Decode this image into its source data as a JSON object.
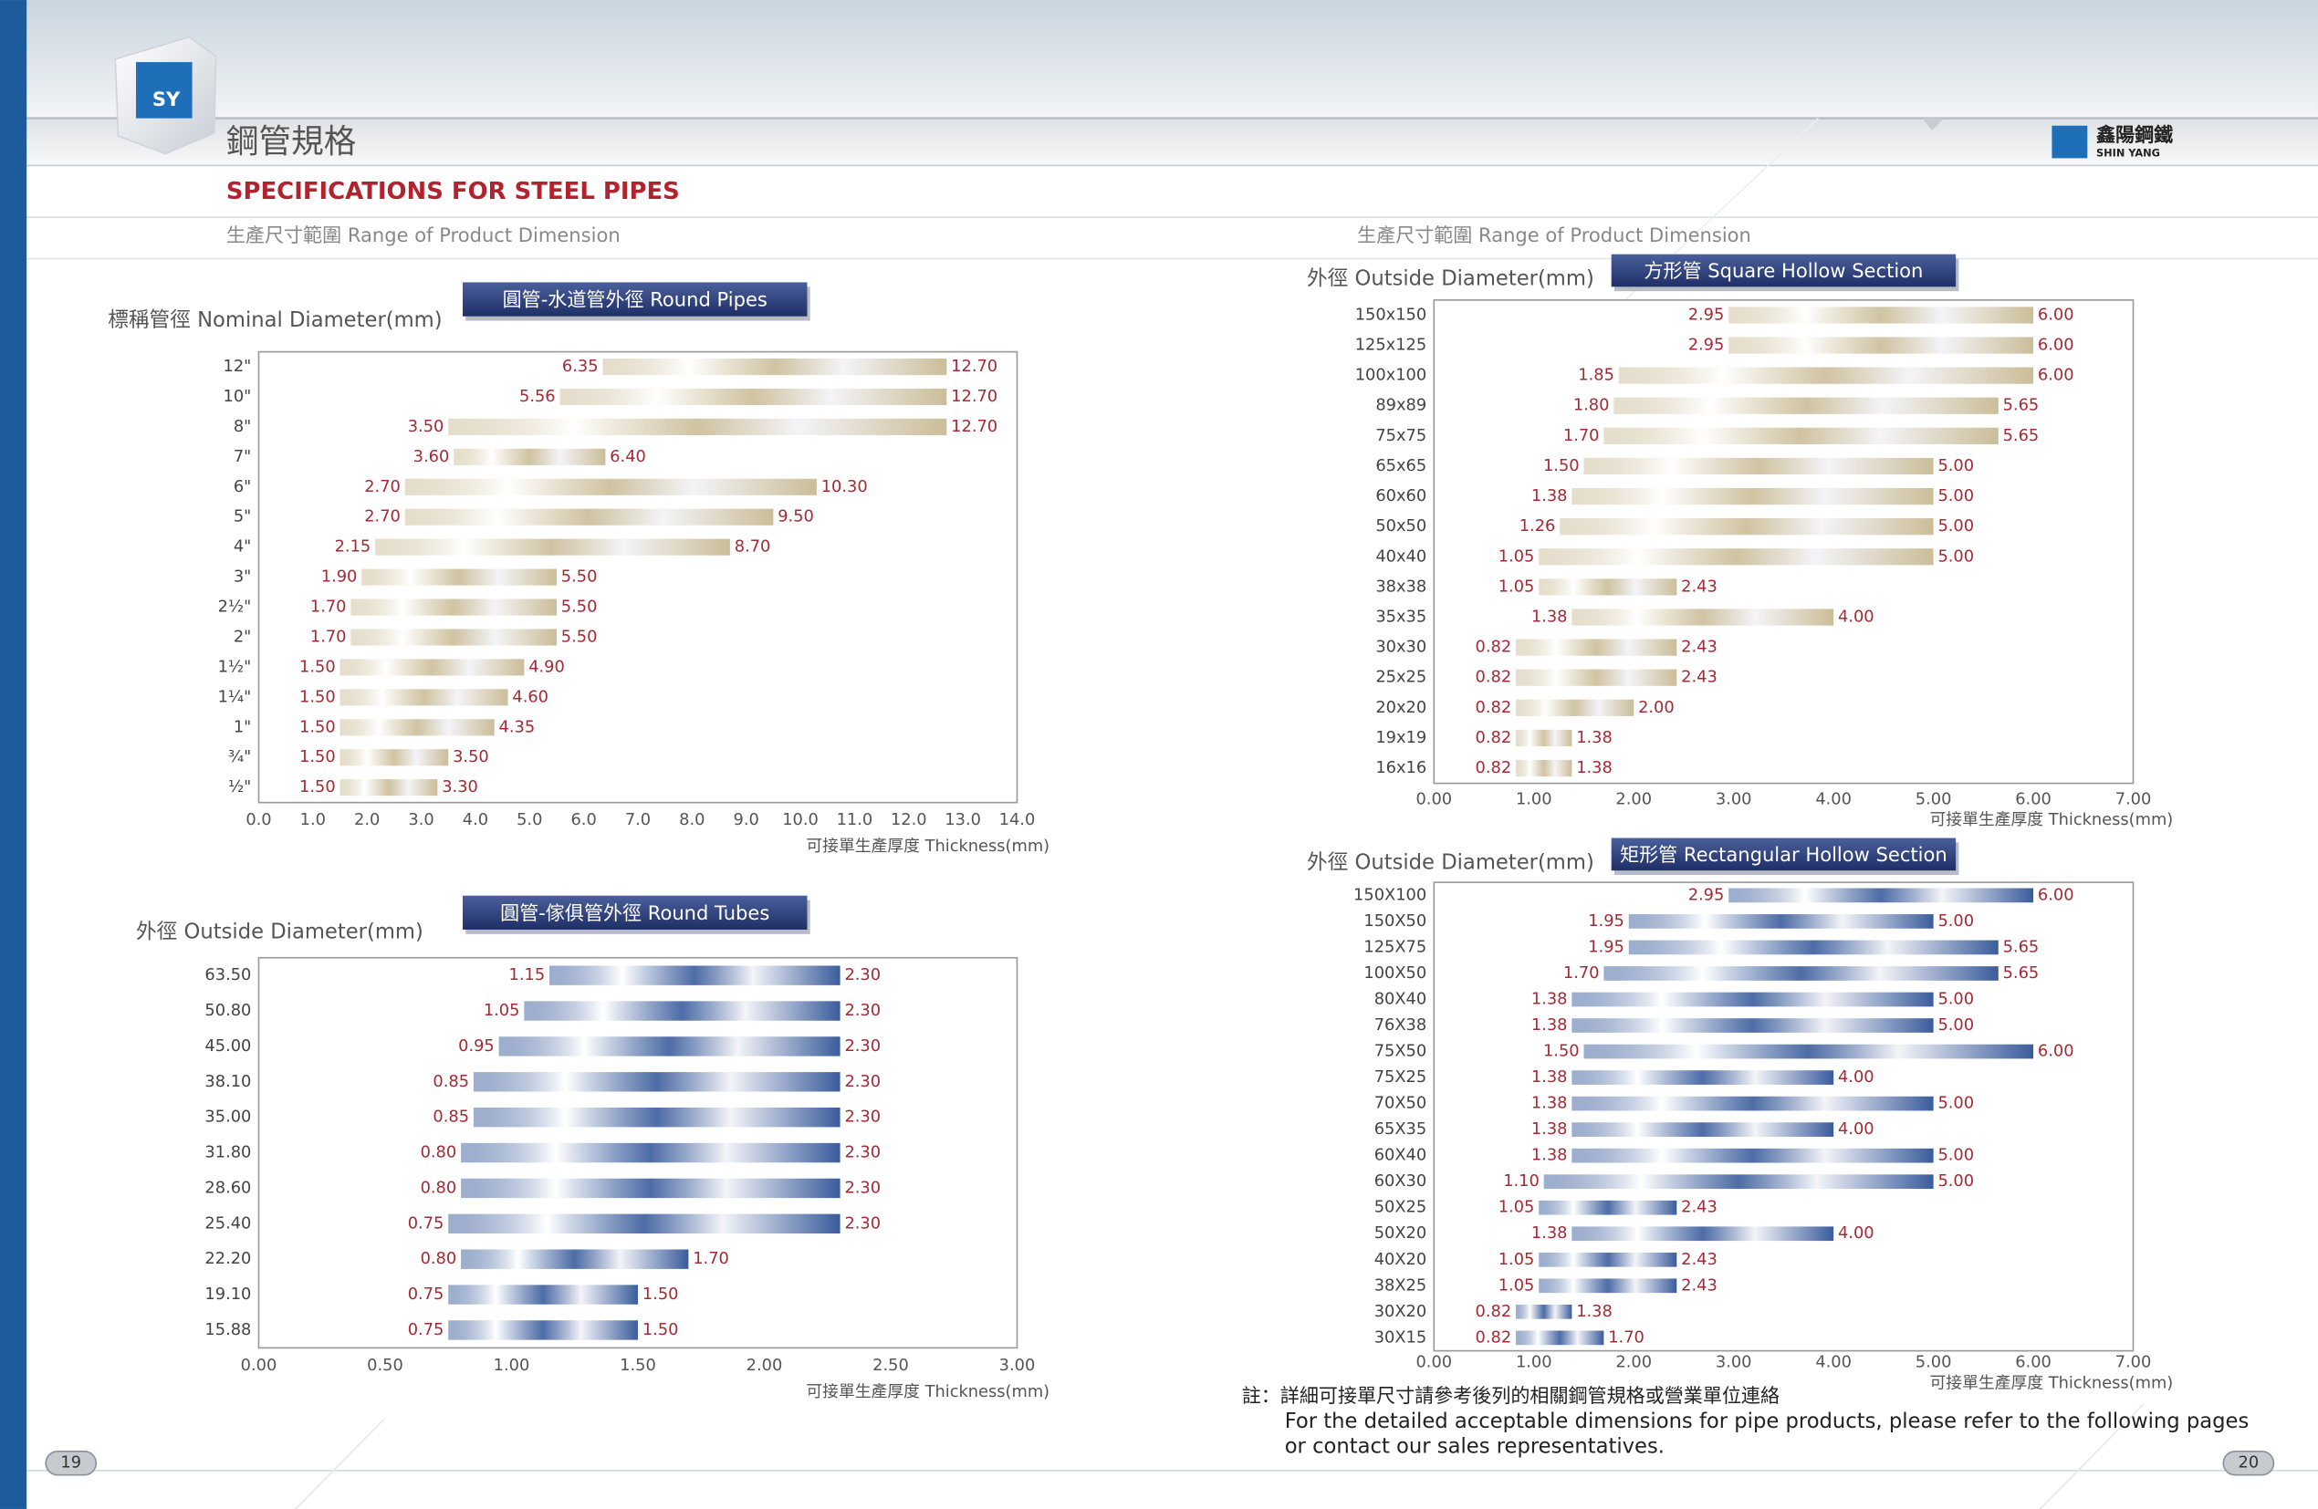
{
  "header": {
    "title_zh": "鋼管規格",
    "title_en": "SPECIFICATIONS FOR STEEL PIPES",
    "logo_mark": "SY",
    "brand_zh": "鑫陽鋼鐵",
    "brand_en": "SHIN YANG"
  },
  "left_subtitle": "生產尺寸範圍 Range of Product Dimension",
  "right_subtitle": "生產尺寸範圍 Range of Product Dimension",
  "note": {
    "zh": "註：詳細可接單尺寸請參考後列的相關鋼管規格或營業單位連絡",
    "en_line1": "For the detailed acceptable dimensions for pipe products, please refer to the following pages",
    "en_line2": "or contact our sales representatives."
  },
  "page_numbers": [
    "19",
    "20"
  ],
  "chart_data": [
    {
      "type": "range_bar",
      "title": "圓管-水道管外徑 Round Pipes",
      "y_label": "標稱管徑 Nominal Diameter(mm)",
      "x_label": "可接單生產厚度 Thickness(mm)",
      "color": "#cbbd98",
      "categories": [
        "12\"",
        "10\"",
        "8\"",
        "7\"",
        "6\"",
        "5\"",
        "4\"",
        "3\"",
        "2½\"",
        "2\"",
        "1½\"",
        "1¼\"",
        "1\"",
        "¾\"",
        "½\""
      ],
      "start": [
        6.35,
        5.56,
        3.5,
        3.6,
        2.7,
        2.7,
        2.15,
        1.9,
        1.7,
        1.7,
        1.5,
        1.5,
        1.5,
        1.5,
        1.5
      ],
      "end": [
        12.7,
        12.7,
        12.7,
        6.4,
        10.3,
        9.5,
        8.7,
        5.5,
        5.5,
        5.5,
        4.9,
        4.6,
        4.35,
        3.5,
        3.3
      ],
      "start_labels": [
        "6.35",
        "5.56",
        "3.50",
        "3.60",
        "2.70",
        "2.70",
        "2.15",
        "1.90",
        "1.70",
        "1.70",
        "1.50",
        "1.50",
        "1.50",
        "1.50",
        "1.50"
      ],
      "end_labels": [
        "12.70",
        "12.70",
        "12.70",
        "6.40",
        "10.30",
        "9.50",
        "8.70",
        "5.50",
        "5.50",
        "5.50",
        "4.90",
        "4.60",
        "4.35",
        "3.50",
        "3.30"
      ],
      "xlim": [
        0,
        14
      ],
      "xticks": [
        {
          "value": 0,
          "label": "0.0"
        },
        {
          "value": 1,
          "label": "1.0"
        },
        {
          "value": 2,
          "label": "2.0"
        },
        {
          "value": 3,
          "label": "3.0"
        },
        {
          "value": 4,
          "label": "4.0"
        },
        {
          "value": 5,
          "label": "5.0"
        },
        {
          "value": 6,
          "label": "6.0"
        },
        {
          "value": 7,
          "label": "7.0"
        },
        {
          "value": 8,
          "label": "8.0"
        },
        {
          "value": 9,
          "label": "9.0"
        },
        {
          "value": 10,
          "label": "10.0"
        },
        {
          "value": 11,
          "label": "11.0"
        },
        {
          "value": 12,
          "label": "12.0"
        },
        {
          "value": 13,
          "label": "13.0"
        },
        {
          "value": 14,
          "label": "14.0"
        }
      ]
    },
    {
      "type": "range_bar",
      "title": "圓管-傢俱管外徑 Round Tubes",
      "y_label": "外徑 Outside Diameter(mm)",
      "x_label": "可接單生產厚度 Thickness(mm)",
      "color": "#3a5c9c",
      "categories": [
        "63.50",
        "50.80",
        "45.00",
        "38.10",
        "35.00",
        "31.80",
        "28.60",
        "25.40",
        "22.20",
        "19.10",
        "15.88"
      ],
      "start": [
        1.15,
        1.05,
        0.95,
        0.85,
        0.85,
        0.8,
        0.8,
        0.75,
        0.8,
        0.75,
        0.75
      ],
      "end": [
        2.3,
        2.3,
        2.3,
        2.3,
        2.3,
        2.3,
        2.3,
        2.3,
        1.7,
        1.5,
        1.5
      ],
      "start_labels": [
        "1.15",
        "1.05",
        "0.95",
        "0.85",
        "0.85",
        "0.80",
        "0.80",
        "0.75",
        "0.80",
        "0.75",
        "0.75"
      ],
      "end_labels": [
        "2.30",
        "2.30",
        "2.30",
        "2.30",
        "2.30",
        "2.30",
        "2.30",
        "2.30",
        "1.70",
        "1.50",
        "1.50"
      ],
      "xlim": [
        0,
        3
      ],
      "xticks": [
        {
          "value": 0,
          "label": "0.00"
        },
        {
          "value": 0.5,
          "label": "0.50"
        },
        {
          "value": 1,
          "label": "1.00"
        },
        {
          "value": 1.5,
          "label": "1.50"
        },
        {
          "value": 2,
          "label": "2.00"
        },
        {
          "value": 2.5,
          "label": "2.50"
        },
        {
          "value": 3,
          "label": "3.00"
        }
      ]
    },
    {
      "type": "range_bar",
      "title": "方形管 Square Hollow Section",
      "y_label": "外徑 Outside Diameter(mm)",
      "x_label": "可接單生產厚度 Thickness(mm)",
      "color": "#cbbd98",
      "categories": [
        "150x150",
        "125x125",
        "100x100",
        "89x89",
        "75x75",
        "65x65",
        "60x60",
        "50x50",
        "40x40",
        "38x38",
        "35x35",
        "30x30",
        "25x25",
        "20x20",
        "19x19",
        "16x16"
      ],
      "start": [
        2.95,
        2.95,
        1.85,
        1.8,
        1.7,
        1.5,
        1.38,
        1.26,
        1.05,
        1.05,
        1.38,
        0.82,
        0.82,
        0.82,
        0.82,
        0.82
      ],
      "end": [
        6,
        6,
        6,
        5.65,
        5.65,
        5,
        5,
        5,
        5,
        2.43,
        4,
        2.43,
        2.43,
        2,
        1.38,
        1.38
      ],
      "start_labels": [
        "2.95",
        "2.95",
        "1.85",
        "1.80",
        "1.70",
        "1.50",
        "1.38",
        "1.26",
        "1.05",
        "1.05",
        "1.38",
        "0.82",
        "0.82",
        "0.82",
        "0.82",
        "0.82"
      ],
      "end_labels": [
        "6.00",
        "6.00",
        "6.00",
        "5.65",
        "5.65",
        "5.00",
        "5.00",
        "5.00",
        "5.00",
        "2.43",
        "4.00",
        "2.43",
        "2.43",
        "2.00",
        "1.38",
        "1.38"
      ],
      "xlim": [
        0,
        7
      ],
      "xticks": [
        {
          "value": 0,
          "label": "0.00"
        },
        {
          "value": 1,
          "label": "1.00"
        },
        {
          "value": 2,
          "label": "2.00"
        },
        {
          "value": 3,
          "label": "3.00"
        },
        {
          "value": 4,
          "label": "4.00"
        },
        {
          "value": 5,
          "label": "5.00"
        },
        {
          "value": 6,
          "label": "6.00"
        },
        {
          "value": 7,
          "label": "7.00"
        }
      ]
    },
    {
      "type": "range_bar",
      "title": "矩形管 Rectangular Hollow Section",
      "y_label": "外徑 Outside Diameter(mm)",
      "x_label": "可接單生產厚度 Thickness(mm)",
      "color": "#3a5c9c",
      "categories": [
        "150X100",
        "150X50",
        "125X75",
        "100X50",
        "80X40",
        "76X38",
        "75X50",
        "75X25",
        "70X50",
        "65X35",
        "60X40",
        "60X30",
        "50X25",
        "50X20",
        "40X20",
        "38X25",
        "30X20",
        "30X15"
      ],
      "start": [
        2.95,
        1.95,
        1.95,
        1.7,
        1.38,
        1.38,
        1.5,
        1.38,
        1.38,
        1.38,
        1.38,
        1.1,
        1.05,
        1.38,
        1.05,
        1.05,
        0.82,
        0.82
      ],
      "end": [
        6,
        5,
        5.65,
        5.65,
        5,
        5,
        6,
        4,
        5,
        4,
        5,
        5,
        2.43,
        4,
        2.43,
        2.43,
        1.38,
        1.7
      ],
      "start_labels": [
        "2.95",
        "1.95",
        "1.95",
        "1.70",
        "1.38",
        "1.38",
        "1.50",
        "1.38",
        "1.38",
        "1.38",
        "1.38",
        "1.10",
        "1.05",
        "1.38",
        "1.05",
        "1.05",
        "0.82",
        "0.82"
      ],
      "end_labels": [
        "6.00",
        "5.00",
        "5.65",
        "5.65",
        "5.00",
        "5.00",
        "6.00",
        "4.00",
        "5.00",
        "4.00",
        "5.00",
        "5.00",
        "2.43",
        "4.00",
        "2.43",
        "2.43",
        "1.38",
        "1.70"
      ],
      "xlim": [
        0,
        7
      ],
      "xticks": [
        {
          "value": 0,
          "label": "0.00"
        },
        {
          "value": 1,
          "label": "1.00"
        },
        {
          "value": 2,
          "label": "2.00"
        },
        {
          "value": 3,
          "label": "3.00"
        },
        {
          "value": 4,
          "label": "4.00"
        },
        {
          "value": 5,
          "label": "5.00"
        },
        {
          "value": 6,
          "label": "6.00"
        },
        {
          "value": 7,
          "label": "7.00"
        }
      ]
    }
  ]
}
